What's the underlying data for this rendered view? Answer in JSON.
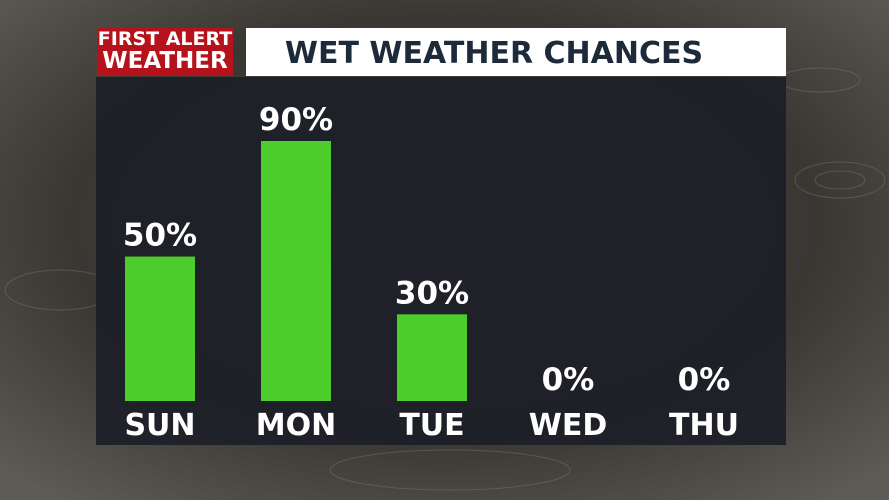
{
  "logo": {
    "line1": "FIRST ALERT",
    "line2": "WEATHER"
  },
  "chart_data": {
    "type": "bar",
    "title": "WET WEATHER CHANCES",
    "categories": [
      "SUN",
      "MON",
      "TUE",
      "WED",
      "THU"
    ],
    "values": [
      50,
      90,
      30,
      0,
      0
    ],
    "value_labels": [
      "50%",
      "90%",
      "30%",
      "0%",
      "0%"
    ],
    "color": "#4ccd2c"
  }
}
